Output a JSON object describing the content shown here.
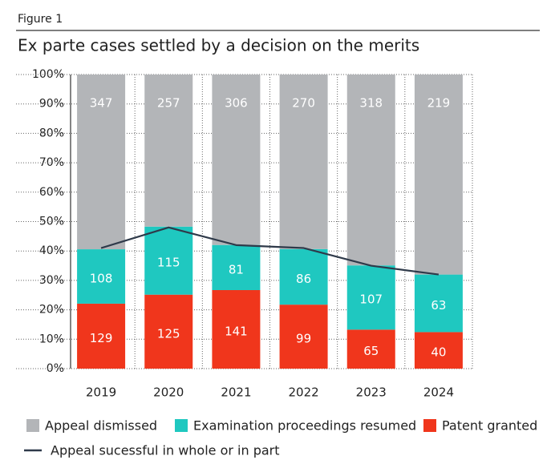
{
  "chart_data": {
    "type": "bar",
    "stacking": "percent",
    "figure_label": "Figure 1",
    "title": "Ex parte cases settled by a decision on the merits",
    "categories": [
      "2019",
      "2020",
      "2021",
      "2022",
      "2023",
      "2024"
    ],
    "series": [
      {
        "name": "Patent granted",
        "color": "#f0361c",
        "values": [
          129,
          125,
          141,
          99,
          65,
          40
        ]
      },
      {
        "name": "Examination proceedings resumed",
        "color": "#1fc8c0",
        "values": [
          108,
          115,
          81,
          86,
          107,
          63
        ]
      },
      {
        "name": "Appeal dismissed",
        "color": "#b3b5b8",
        "values": [
          347,
          257,
          306,
          270,
          318,
          219
        ]
      },
      {
        "name": "Appeal sucessful in whole or in part",
        "type": "line",
        "color": "#2f3a4a",
        "values": [
          41,
          48,
          42,
          41,
          35,
          32
        ]
      }
    ],
    "legend_order": [
      2,
      1,
      0,
      3
    ],
    "ylim": [
      0,
      100
    ],
    "yticks": [
      {
        "value": 0,
        "label": "0%"
      },
      {
        "value": 10,
        "label": "10%"
      },
      {
        "value": 20,
        "label": "20%"
      },
      {
        "value": 30,
        "label": "30%"
      },
      {
        "value": 40,
        "label": "40%"
      },
      {
        "value": 50,
        "label": "50%"
      },
      {
        "value": 60,
        "label": "60%"
      },
      {
        "value": 70,
        "label": "70%"
      },
      {
        "value": 80,
        "label": "80%"
      },
      {
        "value": 90,
        "label": "90%"
      },
      {
        "value": 100,
        "label": "100%"
      }
    ],
    "grid": true
  }
}
